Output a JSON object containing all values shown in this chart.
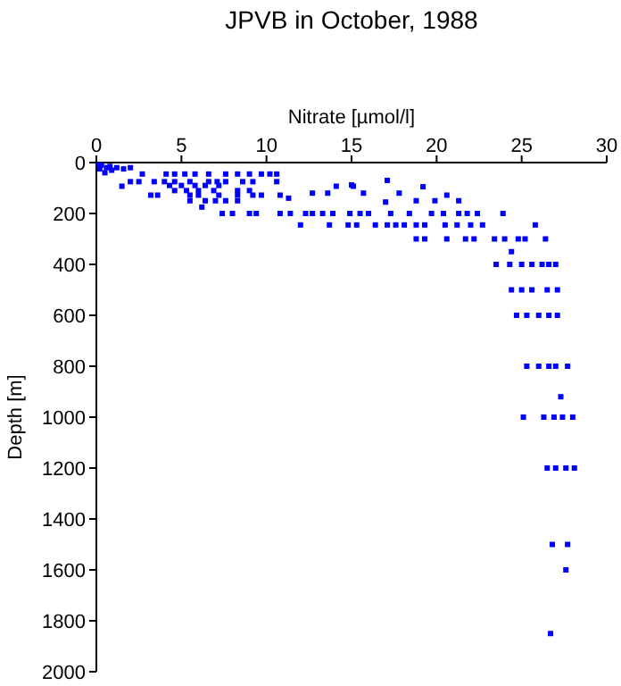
{
  "chart_data": {
    "type": "scatter",
    "title": "JPVB in October, 1988",
    "xlabel": "Nitrate [µmol/l]",
    "ylabel": "Depth [m]",
    "xlim": [
      0,
      30
    ],
    "xticks": [
      0,
      5,
      10,
      15,
      20,
      25,
      30
    ],
    "ylim": [
      2000,
      0
    ],
    "yticks": [
      0,
      200,
      400,
      600,
      800,
      1000,
      1200,
      1400,
      1600,
      1800,
      2000
    ],
    "marker": "square",
    "series": [
      {
        "color": "#0000ff",
        "x": [
          0.1,
          0.3,
          0.6,
          0.9,
          0.5,
          0.2,
          0.8,
          1.2,
          1.6,
          2.0,
          2.7,
          4.1,
          4.6,
          5.2,
          5.8,
          6.6,
          7.6,
          8.3,
          9.0,
          9.7,
          10.2,
          10.6,
          2.0,
          2.5,
          3.4,
          4.0,
          4.6,
          5.5,
          6.6,
          7.1,
          7.6,
          8.6,
          9.2,
          10.6,
          1.5,
          4.3,
          5.0,
          5.8,
          6.4,
          7.2,
          4.6,
          5.3,
          6.0,
          6.9,
          8.3,
          9.0,
          3.2,
          3.6,
          5.5,
          6.0,
          7.2,
          8.3,
          9.2,
          9.7,
          10.8,
          5.5,
          6.4,
          7.0,
          7.6,
          8.3,
          6.2,
          7.4,
          8.0,
          9.0,
          9.4,
          10.8,
          11.4,
          12.3,
          12.7,
          13.3,
          13.9,
          14.9,
          15.5,
          16.0,
          17.3,
          18.4,
          19.7,
          20.4,
          21.3,
          21.8,
          22.4,
          23.9,
          12.0,
          13.7,
          14.8,
          15.3,
          16.4,
          17.1,
          17.6,
          18.1,
          18.8,
          19.3,
          20.5,
          21.2,
          22.0,
          22.7,
          25.8,
          11.3,
          12.7,
          14.1,
          13.6,
          15.0,
          15.7,
          15.1,
          17.1,
          17.8,
          18.8,
          19.2,
          19.9,
          20.6,
          21.3,
          17.0,
          18.8,
          19.3,
          20.6,
          21.7,
          22.2,
          23.4,
          24.0,
          24.8,
          25.2,
          26.4,
          24.4,
          23.5,
          24.3,
          25.0,
          25.6,
          26.2,
          26.6,
          27.0,
          24.4,
          25.0,
          25.6,
          26.5,
          27.1,
          24.7,
          25.3,
          26.0,
          26.6,
          27.1,
          25.3,
          26.0,
          26.6,
          27.0,
          27.7,
          27.3,
          25.1,
          26.3,
          26.9,
          27.4,
          28.0,
          26.5,
          27.0,
          27.6,
          28.1,
          26.8,
          27.7,
          27.6,
          26.7
        ],
        "values": [
          5,
          10,
          20,
          30,
          40,
          25,
          15,
          20,
          25,
          20,
          45,
          45,
          45,
          45,
          45,
          45,
          45,
          45,
          45,
          45,
          45,
          45,
          75,
          75,
          75,
          75,
          75,
          75,
          75,
          75,
          75,
          75,
          75,
          75,
          93,
          90,
          90,
          90,
          90,
          90,
          110,
          110,
          110,
          110,
          110,
          110,
          128,
          128,
          128,
          128,
          128,
          128,
          128,
          128,
          128,
          150,
          150,
          150,
          150,
          150,
          175,
          200,
          200,
          200,
          200,
          200,
          200,
          200,
          200,
          200,
          200,
          200,
          200,
          200,
          200,
          200,
          200,
          200,
          200,
          200,
          200,
          200,
          245,
          245,
          245,
          245,
          245,
          245,
          245,
          245,
          245,
          245,
          245,
          245,
          245,
          245,
          245,
          140,
          120,
          93,
          120,
          88,
          120,
          93,
          70,
          120,
          150,
          95,
          150,
          128,
          150,
          155,
          300,
          300,
          300,
          300,
          300,
          300,
          300,
          300,
          300,
          300,
          350,
          400,
          400,
          400,
          400,
          400,
          400,
          400,
          500,
          500,
          500,
          500,
          500,
          600,
          600,
          600,
          600,
          600,
          800,
          800,
          800,
          800,
          800,
          920,
          1000,
          1000,
          1000,
          1000,
          1000,
          1200,
          1200,
          1200,
          1200,
          1500,
          1500,
          1600,
          1850
        ]
      }
    ]
  }
}
